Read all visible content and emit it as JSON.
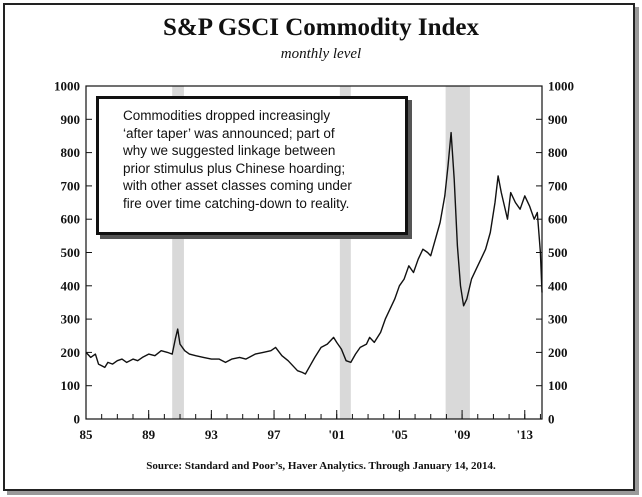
{
  "chart_data": {
    "type": "line",
    "title": "S&P GSCI Commodity Index",
    "subtitle": "monthly level",
    "source": "Source: Standard and Poor’s, Haver Analytics. Through January 14, 2014.",
    "xlim": [
      1985,
      2014.1
    ],
    "ylim": [
      0,
      1000
    ],
    "y_ticks": [
      0,
      100,
      200,
      300,
      400,
      500,
      600,
      700,
      800,
      900,
      1000
    ],
    "y_axes": [
      "left",
      "right"
    ],
    "x_ticks": [
      {
        "value": 1985,
        "label": "85"
      },
      {
        "value": 1989,
        "label": "89"
      },
      {
        "value": 1993,
        "label": "93"
      },
      {
        "value": 1997,
        "label": "97"
      },
      {
        "value": 2001,
        "label": "'01"
      },
      {
        "value": 2005,
        "label": "'05"
      },
      {
        "value": 2009,
        "label": "'09"
      },
      {
        "value": 2013,
        "label": "'13"
      }
    ],
    "recessions": [
      [
        1990.5,
        1991.25
      ],
      [
        2001.2,
        2001.9
      ],
      [
        2007.95,
        2009.5
      ]
    ],
    "grid": false,
    "series": [
      {
        "color": "#111111",
        "x": [
          1985.0,
          1985.3,
          1985.6,
          1985.8,
          1986.0,
          1986.2,
          1986.4,
          1986.7,
          1987.0,
          1987.3,
          1987.6,
          1988.0,
          1988.3,
          1988.6,
          1989.0,
          1989.4,
          1989.8,
          1990.2,
          1990.5,
          1990.7,
          1990.85,
          1991.0,
          1991.3,
          1991.6,
          1992.0,
          1992.5,
          1993.0,
          1993.5,
          1993.9,
          1994.3,
          1994.8,
          1995.2,
          1995.8,
          1996.3,
          1996.8,
          1997.1,
          1997.5,
          1997.9,
          1998.2,
          1998.5,
          1998.8,
          1999.0,
          1999.3,
          1999.6,
          2000.0,
          2000.4,
          2000.8,
          2001.0,
          2001.3,
          2001.6,
          2001.9,
          2002.2,
          2002.5,
          2002.9,
          2003.1,
          2003.4,
          2003.8,
          2004.1,
          2004.4,
          2004.7,
          2005.0,
          2005.3,
          2005.6,
          2005.9,
          2006.2,
          2006.5,
          2006.8,
          2007.0,
          2007.3,
          2007.6,
          2007.9,
          2008.1,
          2008.3,
          2008.5,
          2008.7,
          2008.9,
          2009.1,
          2009.3,
          2009.6,
          2009.9,
          2010.2,
          2010.5,
          2010.8,
          2011.1,
          2011.3,
          2011.5,
          2011.7,
          2011.9,
          2012.1,
          2012.4,
          2012.7,
          2013.0,
          2013.3,
          2013.6,
          2013.8,
          2014.0,
          2014.1
        ],
        "y": [
          200,
          185,
          195,
          165,
          160,
          155,
          170,
          165,
          175,
          180,
          170,
          180,
          175,
          185,
          195,
          190,
          205,
          200,
          195,
          240,
          270,
          225,
          205,
          195,
          190,
          185,
          180,
          180,
          170,
          180,
          185,
          180,
          195,
          200,
          205,
          215,
          190,
          175,
          160,
          145,
          140,
          135,
          160,
          185,
          215,
          225,
          245,
          230,
          210,
          175,
          170,
          195,
          215,
          225,
          245,
          230,
          260,
          300,
          330,
          360,
          400,
          420,
          460,
          440,
          480,
          510,
          500,
          490,
          540,
          590,
          670,
          760,
          860,
          720,
          520,
          400,
          340,
          360,
          420,
          450,
          480,
          510,
          560,
          650,
          730,
          680,
          640,
          600,
          680,
          650,
          630,
          670,
          640,
          600,
          620,
          500,
          380
        ]
      }
    ]
  },
  "annotation": {
    "lines": [
      "Commodities dropped increasingly",
      "‘after taper’ was announced; part of",
      "why we suggested linkage between",
      "prior stimulus plus Chinese hoarding;",
      "with other asset classes coming under",
      "fire over time catching-down to reality."
    ]
  }
}
